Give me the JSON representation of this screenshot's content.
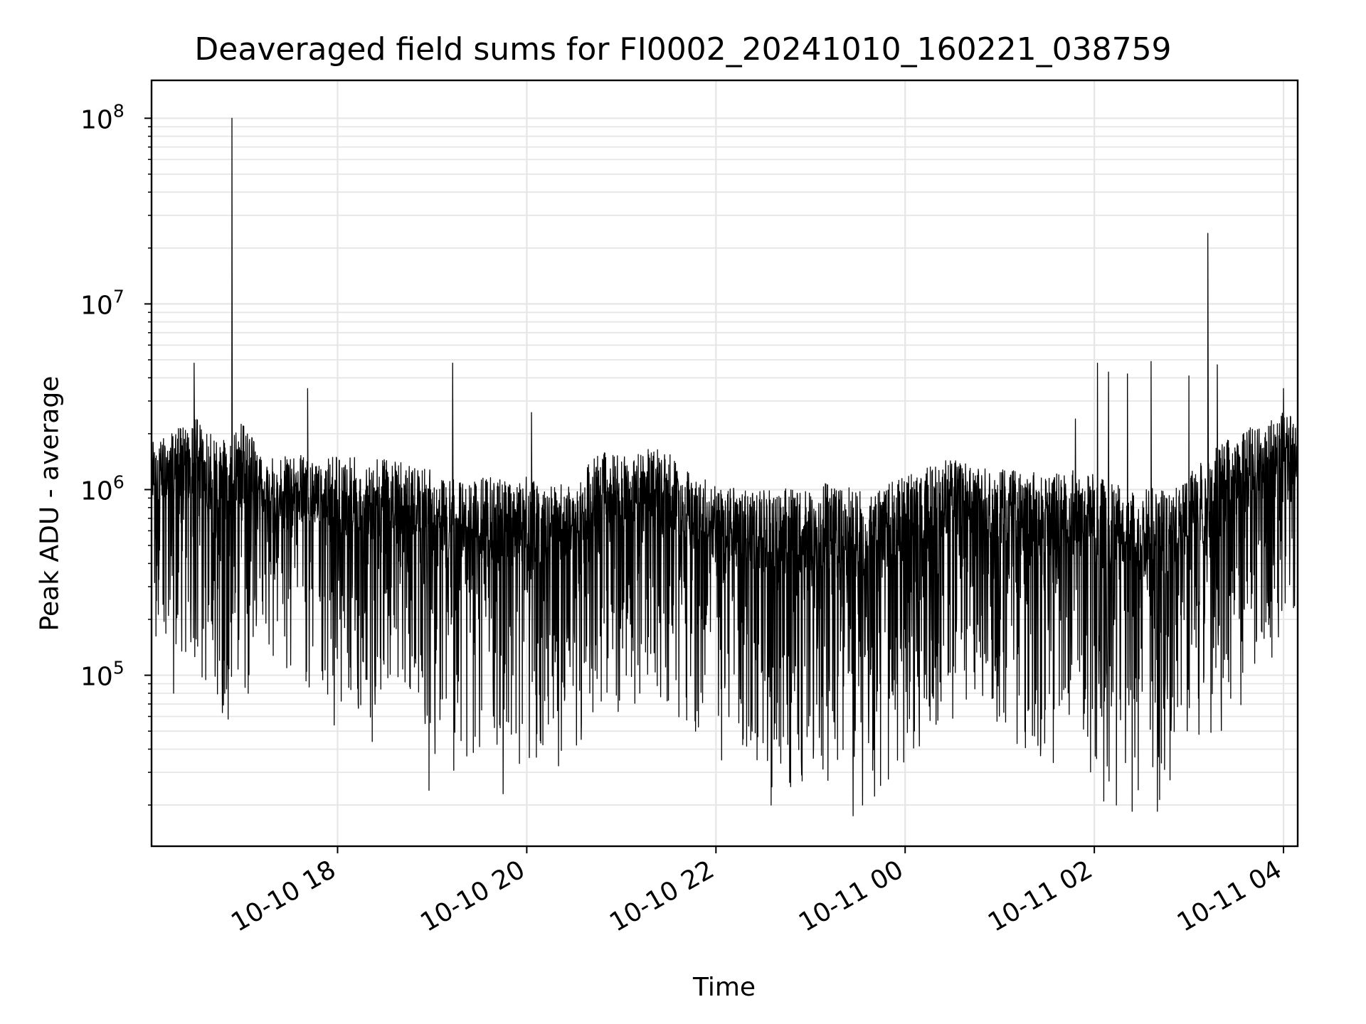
{
  "chart_data": {
    "type": "line",
    "title": "Deaveraged field sums for FI0002_20241010_160221_038759",
    "xlabel": "Time",
    "ylabel": "Peak ADU - average",
    "yscale": "log",
    "grid": true,
    "xlim": [
      "2024-10-10 16:02",
      "2024-10-11 04:09"
    ],
    "ylim": [
      12000,
      160000000
    ],
    "x_ticks": [
      {
        "value": "2024-10-10 18:00",
        "label": "10-10 18"
      },
      {
        "value": "2024-10-10 20:00",
        "label": "10-10 20"
      },
      {
        "value": "2024-10-10 22:00",
        "label": "10-10 22"
      },
      {
        "value": "2024-10-11 00:00",
        "label": "10-11 00"
      },
      {
        "value": "2024-10-11 02:00",
        "label": "10-11 02"
      },
      {
        "value": "2024-10-11 04:00",
        "label": "10-11 04"
      }
    ],
    "y_ticks": [
      {
        "value": 100000,
        "base": "10",
        "exp": "5"
      },
      {
        "value": 1000000,
        "base": "10",
        "exp": "6"
      },
      {
        "value": 10000000,
        "base": "10",
        "exp": "7"
      },
      {
        "value": 100000000,
        "base": "10",
        "exp": "8"
      }
    ],
    "series": [
      {
        "color": "#000000",
        "x": [
          "2024-10-10 16:02",
          "2024-10-10 16:10",
          "2024-10-10 16:20",
          "2024-10-10 16:30",
          "2024-10-10 16:40",
          "2024-10-10 16:50",
          "2024-10-10 17:00",
          "2024-10-10 17:10",
          "2024-10-10 17:20",
          "2024-10-10 17:30",
          "2024-10-10 17:40",
          "2024-10-10 17:50",
          "2024-10-10 18:00",
          "2024-10-10 18:10",
          "2024-10-10 18:20",
          "2024-10-10 18:30",
          "2024-10-10 18:40",
          "2024-10-10 18:50",
          "2024-10-10 19:00",
          "2024-10-10 19:10",
          "2024-10-10 19:20",
          "2024-10-10 19:30",
          "2024-10-10 19:40",
          "2024-10-10 19:50",
          "2024-10-10 20:00",
          "2024-10-10 20:10",
          "2024-10-10 20:20",
          "2024-10-10 20:30",
          "2024-10-10 20:40",
          "2024-10-10 20:50",
          "2024-10-10 21:00",
          "2024-10-10 21:10",
          "2024-10-10 21:20",
          "2024-10-10 21:30",
          "2024-10-10 21:40",
          "2024-10-10 21:50",
          "2024-10-10 22:00",
          "2024-10-10 22:10",
          "2024-10-10 22:20",
          "2024-10-10 22:30",
          "2024-10-10 22:40",
          "2024-10-10 22:50",
          "2024-10-10 23:00",
          "2024-10-10 23:10",
          "2024-10-10 23:20",
          "2024-10-10 23:30",
          "2024-10-10 23:40",
          "2024-10-10 23:50",
          "2024-10-11 00:00",
          "2024-10-11 00:10",
          "2024-10-11 00:20",
          "2024-10-11 00:30",
          "2024-10-11 00:40",
          "2024-10-11 00:50",
          "2024-10-11 01:00",
          "2024-10-11 01:10",
          "2024-10-11 01:20",
          "2024-10-11 01:30",
          "2024-10-11 01:40",
          "2024-10-11 01:50",
          "2024-10-11 02:00",
          "2024-10-11 02:10",
          "2024-10-11 02:20",
          "2024-10-11 02:30",
          "2024-10-11 02:40",
          "2024-10-11 02:50",
          "2024-10-11 03:00",
          "2024-10-11 03:10",
          "2024-10-11 03:20",
          "2024-10-11 03:30",
          "2024-10-11 03:40",
          "2024-10-11 03:50",
          "2024-10-11 04:00",
          "2024-10-11 04:09"
        ],
        "low": [
          150000,
          120000,
          100000,
          80000,
          60000,
          55000,
          65000,
          90000,
          110000,
          80000,
          75000,
          70000,
          50000,
          45000,
          40000,
          50000,
          60000,
          70000,
          30000,
          28000,
          35000,
          30000,
          25000,
          24000,
          30000,
          35000,
          30000,
          32000,
          40000,
          50000,
          60000,
          70000,
          65000,
          60000,
          45000,
          40000,
          35000,
          30000,
          28000,
          25000,
          22000,
          20000,
          25000,
          22000,
          20000,
          18000,
          20000,
          25000,
          25000,
          30000,
          35000,
          45000,
          55000,
          60000,
          55000,
          40000,
          35000,
          30000,
          35000,
          50000,
          25000,
          22000,
          20000,
          18000,
          20000,
          25000,
          40000,
          35000,
          45000,
          60000,
          80000,
          100000,
          150000,
          200000
        ],
        "high": [
          1800000,
          2000000,
          2200000,
          2500000,
          2000000,
          1800000,
          2400000,
          1600000,
          1500000,
          1600000,
          1500000,
          1500000,
          1500000,
          1500000,
          1400000,
          1500000,
          1400000,
          1300000,
          1300000,
          1200000,
          1100000,
          1200000,
          1200000,
          1100000,
          1200000,
          1000000,
          1100000,
          1000000,
          1500000,
          1700000,
          1500000,
          1600000,
          1700000,
          1600000,
          1300000,
          1200000,
          1100000,
          1050000,
          1000000,
          1000000,
          1050000,
          1000000,
          1000000,
          1100000,
          1050000,
          1000000,
          1000000,
          1100000,
          1200000,
          1250000,
          1400000,
          1500000,
          1400000,
          1350000,
          1300000,
          1300000,
          1250000,
          1200000,
          1300000,
          1300000,
          1200000,
          1100000,
          1100000,
          1000000,
          1050000,
          1000000,
          1200000,
          1500000,
          1800000,
          2000000,
          2200000,
          2400000,
          2600000,
          2500000
        ],
        "spikes": [
          {
            "x": "2024-10-10 16:29",
            "value": 4800000
          },
          {
            "x": "2024-10-10 16:53",
            "value": 100000000
          },
          {
            "x": "2024-10-10 17:41",
            "value": 3500000
          },
          {
            "x": "2024-10-10 19:13",
            "value": 4800000
          },
          {
            "x": "2024-10-10 20:03",
            "value": 2600000
          },
          {
            "x": "2024-10-11 01:48",
            "value": 2400000
          },
          {
            "x": "2024-10-11 02:02",
            "value": 4800000
          },
          {
            "x": "2024-10-11 02:09",
            "value": 4300000
          },
          {
            "x": "2024-10-11 02:21",
            "value": 4200000
          },
          {
            "x": "2024-10-11 02:36",
            "value": 4900000
          },
          {
            "x": "2024-10-11 03:00",
            "value": 4100000
          },
          {
            "x": "2024-10-11 03:12",
            "value": 24000000
          },
          {
            "x": "2024-10-11 03:18",
            "value": 4700000
          },
          {
            "x": "2024-10-11 04:00",
            "value": 3500000
          }
        ],
        "dips": [
          {
            "x": "2024-10-10 16:16",
            "value": 80000
          },
          {
            "x": "2024-10-10 18:58",
            "value": 24000
          },
          {
            "x": "2024-10-10 19:45",
            "value": 23000
          },
          {
            "x": "2024-10-10 22:35",
            "value": 20000
          },
          {
            "x": "2024-10-10 23:27",
            "value": 17500
          },
          {
            "x": "2024-10-10 23:33",
            "value": 20000
          },
          {
            "x": "2024-10-11 02:06",
            "value": 21000
          },
          {
            "x": "2024-10-11 02:14",
            "value": 20000
          },
          {
            "x": "2024-10-11 02:24",
            "value": 18500
          },
          {
            "x": "2024-10-11 02:40",
            "value": 18500
          }
        ]
      }
    ]
  }
}
